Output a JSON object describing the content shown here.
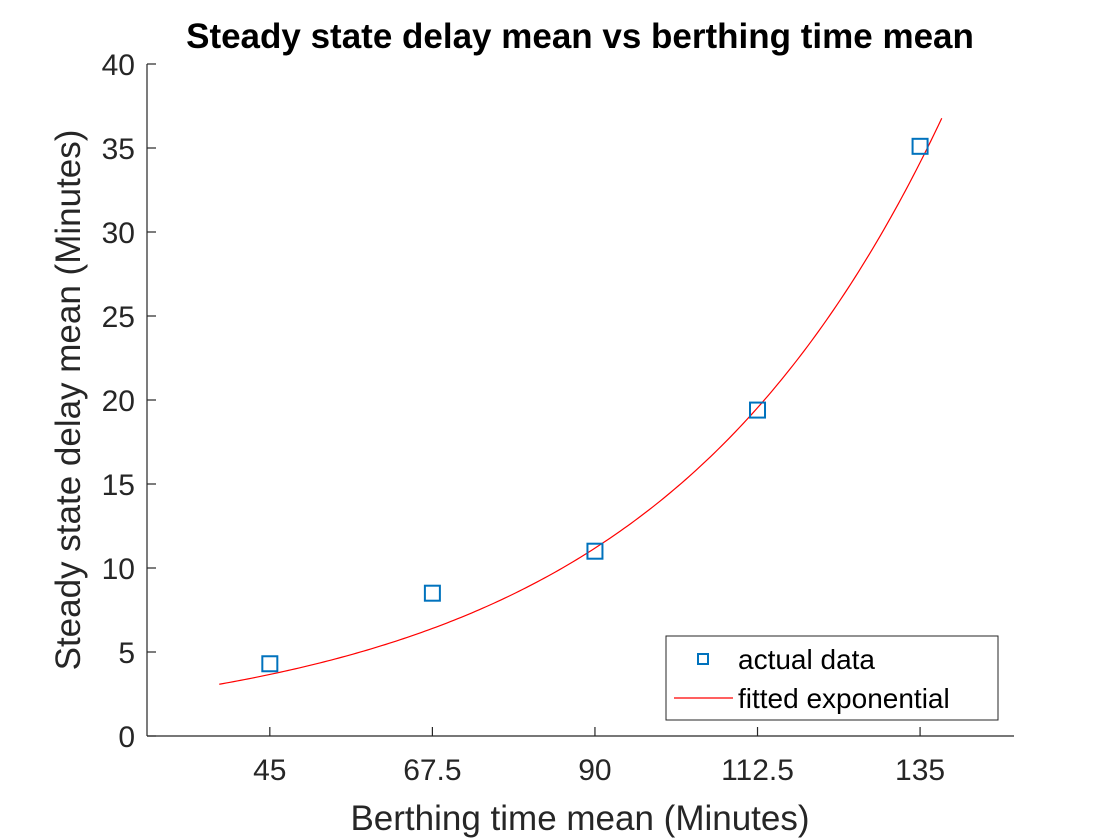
{
  "chart_data": {
    "type": "scatter",
    "title": "Steady state delay mean vs berthing time mean",
    "xlabel": "Berthing time mean (Minutes)",
    "ylabel": "Steady state delay mean (Minutes)",
    "xlim": [
      28,
      148
    ],
    "ylim": [
      0,
      40
    ],
    "xticks": [
      45,
      67.5,
      90,
      112.5,
      135
    ],
    "xtick_labels": [
      "45",
      "67.5",
      "90",
      "112.5",
      "135"
    ],
    "yticks": [
      0,
      5,
      10,
      15,
      20,
      25,
      30,
      35,
      40
    ],
    "ytick_labels": [
      "0",
      "5",
      "10",
      "15",
      "20",
      "25",
      "30",
      "35",
      "40"
    ],
    "grid": false,
    "legend_position": "bottom-right",
    "series": [
      {
        "name": "actual data",
        "type": "scatter",
        "marker": "square",
        "color": "#0072BD",
        "x": [
          45,
          67.5,
          90,
          112.5,
          135
        ],
        "y": [
          4.3,
          8.5,
          11.0,
          19.4,
          35.1
        ]
      },
      {
        "name": "fitted exponential",
        "type": "line",
        "color": "#FF0000",
        "fit": {
          "a": 1.2,
          "b": 0.0248
        },
        "x_range": [
          38,
          138
        ]
      }
    ]
  }
}
